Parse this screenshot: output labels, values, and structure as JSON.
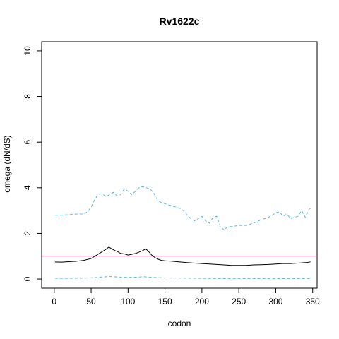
{
  "chart_data": {
    "type": "line",
    "title": "Rv1622c",
    "xlabel": "codon",
    "ylabel": "omega (dN/dS)",
    "xlim": [
      -17,
      356
    ],
    "ylim": [
      -0.4,
      10.4
    ],
    "x_ticks": [
      0,
      50,
      100,
      150,
      200,
      250,
      300,
      350
    ],
    "y_ticks": [
      0,
      2,
      4,
      6,
      8,
      10
    ],
    "reference_line": {
      "y": 1,
      "color": "#cc79a7"
    },
    "series": [
      {
        "style": "dashed",
        "color": "#56b4e9",
        "points": [
          [
            1,
            2.8
          ],
          [
            10,
            2.8
          ],
          [
            20,
            2.82
          ],
          [
            30,
            2.85
          ],
          [
            40,
            2.85
          ],
          [
            45,
            2.95
          ],
          [
            50,
            3.15
          ],
          [
            55,
            3.5
          ],
          [
            60,
            3.7
          ],
          [
            65,
            3.75
          ],
          [
            70,
            3.6
          ],
          [
            75,
            3.7
          ],
          [
            80,
            3.8
          ],
          [
            85,
            3.65
          ],
          [
            90,
            3.7
          ],
          [
            95,
            3.95
          ],
          [
            100,
            3.85
          ],
          [
            105,
            3.7
          ],
          [
            110,
            3.85
          ],
          [
            115,
            4.0
          ],
          [
            120,
            4.05
          ],
          [
            125,
            4.0
          ],
          [
            130,
            3.95
          ],
          [
            135,
            3.75
          ],
          [
            140,
            3.45
          ],
          [
            145,
            3.35
          ],
          [
            150,
            3.3
          ],
          [
            160,
            3.2
          ],
          [
            170,
            3.1
          ],
          [
            175,
            3.0
          ],
          [
            180,
            2.8
          ],
          [
            185,
            2.65
          ],
          [
            190,
            2.55
          ],
          [
            195,
            2.65
          ],
          [
            200,
            2.75
          ],
          [
            205,
            2.55
          ],
          [
            210,
            2.45
          ],
          [
            215,
            2.7
          ],
          [
            220,
            2.75
          ],
          [
            225,
            2.3
          ],
          [
            230,
            2.15
          ],
          [
            235,
            2.3
          ],
          [
            240,
            2.3
          ],
          [
            250,
            2.35
          ],
          [
            260,
            2.35
          ],
          [
            270,
            2.45
          ],
          [
            280,
            2.6
          ],
          [
            290,
            2.7
          ],
          [
            300,
            2.9
          ],
          [
            305,
            2.95
          ],
          [
            310,
            2.75
          ],
          [
            315,
            2.85
          ],
          [
            320,
            2.65
          ],
          [
            325,
            2.7
          ],
          [
            330,
            2.75
          ],
          [
            335,
            3.0
          ],
          [
            340,
            2.7
          ],
          [
            345,
            3.05
          ],
          [
            347,
            3.1
          ]
        ]
      },
      {
        "style": "solid",
        "color": "#000000",
        "points": [
          [
            1,
            0.75
          ],
          [
            10,
            0.74
          ],
          [
            20,
            0.76
          ],
          [
            30,
            0.78
          ],
          [
            40,
            0.82
          ],
          [
            50,
            0.9
          ],
          [
            55,
            1.0
          ],
          [
            60,
            1.1
          ],
          [
            65,
            1.2
          ],
          [
            70,
            1.3
          ],
          [
            74,
            1.4
          ],
          [
            78,
            1.32
          ],
          [
            82,
            1.25
          ],
          [
            86,
            1.2
          ],
          [
            90,
            1.12
          ],
          [
            95,
            1.1
          ],
          [
            100,
            1.05
          ],
          [
            105,
            1.08
          ],
          [
            110,
            1.12
          ],
          [
            115,
            1.18
          ],
          [
            120,
            1.25
          ],
          [
            124,
            1.32
          ],
          [
            128,
            1.2
          ],
          [
            132,
            1.05
          ],
          [
            136,
            0.95
          ],
          [
            140,
            0.88
          ],
          [
            145,
            0.82
          ],
          [
            150,
            0.8
          ],
          [
            160,
            0.78
          ],
          [
            170,
            0.75
          ],
          [
            180,
            0.72
          ],
          [
            190,
            0.7
          ],
          [
            200,
            0.68
          ],
          [
            210,
            0.66
          ],
          [
            220,
            0.64
          ],
          [
            230,
            0.62
          ],
          [
            240,
            0.6
          ],
          [
            250,
            0.6
          ],
          [
            260,
            0.6
          ],
          [
            270,
            0.62
          ],
          [
            280,
            0.63
          ],
          [
            290,
            0.64
          ],
          [
            300,
            0.66
          ],
          [
            310,
            0.68
          ],
          [
            320,
            0.68
          ],
          [
            330,
            0.7
          ],
          [
            340,
            0.72
          ],
          [
            347,
            0.75
          ]
        ]
      },
      {
        "style": "dashed",
        "color": "#56b4e9",
        "points": [
          [
            1,
            0.03
          ],
          [
            20,
            0.03
          ],
          [
            40,
            0.04
          ],
          [
            55,
            0.06
          ],
          [
            65,
            0.09
          ],
          [
            75,
            0.11
          ],
          [
            85,
            0.09
          ],
          [
            100,
            0.07
          ],
          [
            110,
            0.08
          ],
          [
            122,
            0.1
          ],
          [
            135,
            0.07
          ],
          [
            150,
            0.05
          ],
          [
            175,
            0.04
          ],
          [
            200,
            0.03
          ],
          [
            225,
            0.02
          ],
          [
            250,
            0.02
          ],
          [
            275,
            0.02
          ],
          [
            300,
            0.02
          ],
          [
            325,
            0.02
          ],
          [
            347,
            0.02
          ]
        ]
      }
    ]
  }
}
